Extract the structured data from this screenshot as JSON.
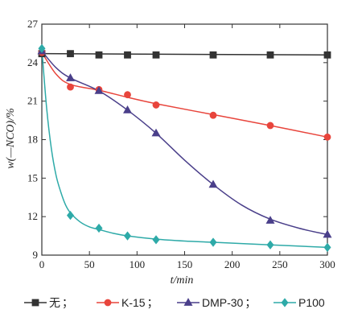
{
  "chart_data": {
    "type": "line",
    "xlabel": "t/min",
    "ylabel": "w(—NCO)/%",
    "xlim": [
      0,
      300
    ],
    "ylim": [
      9,
      27
    ],
    "xticks": [
      0,
      50,
      100,
      150,
      200,
      250,
      300
    ],
    "yticks": [
      9,
      12,
      15,
      18,
      21,
      24,
      27
    ],
    "grid": false,
    "legend_position": "bottom",
    "series": [
      {
        "name": "无",
        "separator": "；",
        "marker": "square",
        "color": "#333333",
        "points": [
          [
            0,
            24.7
          ],
          [
            30,
            24.7
          ],
          [
            60,
            24.6
          ],
          [
            90,
            24.6
          ],
          [
            120,
            24.6
          ],
          [
            180,
            24.6
          ],
          [
            240,
            24.6
          ],
          [
            300,
            24.6
          ]
        ],
        "curve": [
          [
            0,
            24.7
          ],
          [
            300,
            24.6
          ]
        ]
      },
      {
        "name": "K-15",
        "separator": "；",
        "marker": "circle",
        "color": "#e8453c",
        "points": [
          [
            0,
            24.8
          ],
          [
            30,
            22.1
          ],
          [
            60,
            21.9
          ],
          [
            90,
            21.5
          ],
          [
            120,
            20.7
          ],
          [
            180,
            19.9
          ],
          [
            240,
            19.1
          ],
          [
            300,
            18.2
          ]
        ],
        "curve": [
          [
            0,
            24.8
          ],
          [
            15,
            23.1
          ],
          [
            30,
            22.3
          ],
          [
            60,
            21.85
          ],
          [
            90,
            21.3
          ],
          [
            120,
            20.8
          ],
          [
            180,
            19.95
          ],
          [
            240,
            19.1
          ],
          [
            300,
            18.2
          ]
        ]
      },
      {
        "name": "DMP-30",
        "separator": "；",
        "marker": "triangle",
        "color": "#4a3f8a",
        "points": [
          [
            0,
            24.9
          ],
          [
            30,
            22.8
          ],
          [
            60,
            21.8
          ],
          [
            90,
            20.3
          ],
          [
            120,
            18.5
          ],
          [
            180,
            14.5
          ],
          [
            240,
            11.7
          ],
          [
            300,
            10.6
          ]
        ],
        "curve": [
          [
            0,
            24.9
          ],
          [
            15,
            23.6
          ],
          [
            30,
            22.8
          ],
          [
            60,
            21.8
          ],
          [
            90,
            20.3
          ],
          [
            120,
            18.5
          ],
          [
            150,
            16.4
          ],
          [
            180,
            14.5
          ],
          [
            210,
            12.9
          ],
          [
            240,
            11.8
          ],
          [
            270,
            11.1
          ],
          [
            300,
            10.6
          ]
        ]
      },
      {
        "name": "P100",
        "separator": "",
        "marker": "diamond",
        "color": "#2eaaa8",
        "points": [
          [
            0,
            25.1
          ],
          [
            30,
            12.1
          ],
          [
            60,
            11.1
          ],
          [
            90,
            10.5
          ],
          [
            120,
            10.2
          ],
          [
            180,
            10.0
          ],
          [
            240,
            9.8
          ],
          [
            300,
            9.6
          ]
        ],
        "curve": [
          [
            0,
            25.1
          ],
          [
            5,
            20.5
          ],
          [
            10,
            17.3
          ],
          [
            15,
            15.2
          ],
          [
            20,
            13.9
          ],
          [
            25,
            12.9
          ],
          [
            30,
            12.3
          ],
          [
            40,
            11.6
          ],
          [
            50,
            11.2
          ],
          [
            60,
            11.0
          ],
          [
            75,
            10.7
          ],
          [
            90,
            10.5
          ],
          [
            120,
            10.25
          ],
          [
            150,
            10.1
          ],
          [
            180,
            10.0
          ],
          [
            240,
            9.8
          ],
          [
            300,
            9.6
          ]
        ]
      }
    ]
  }
}
